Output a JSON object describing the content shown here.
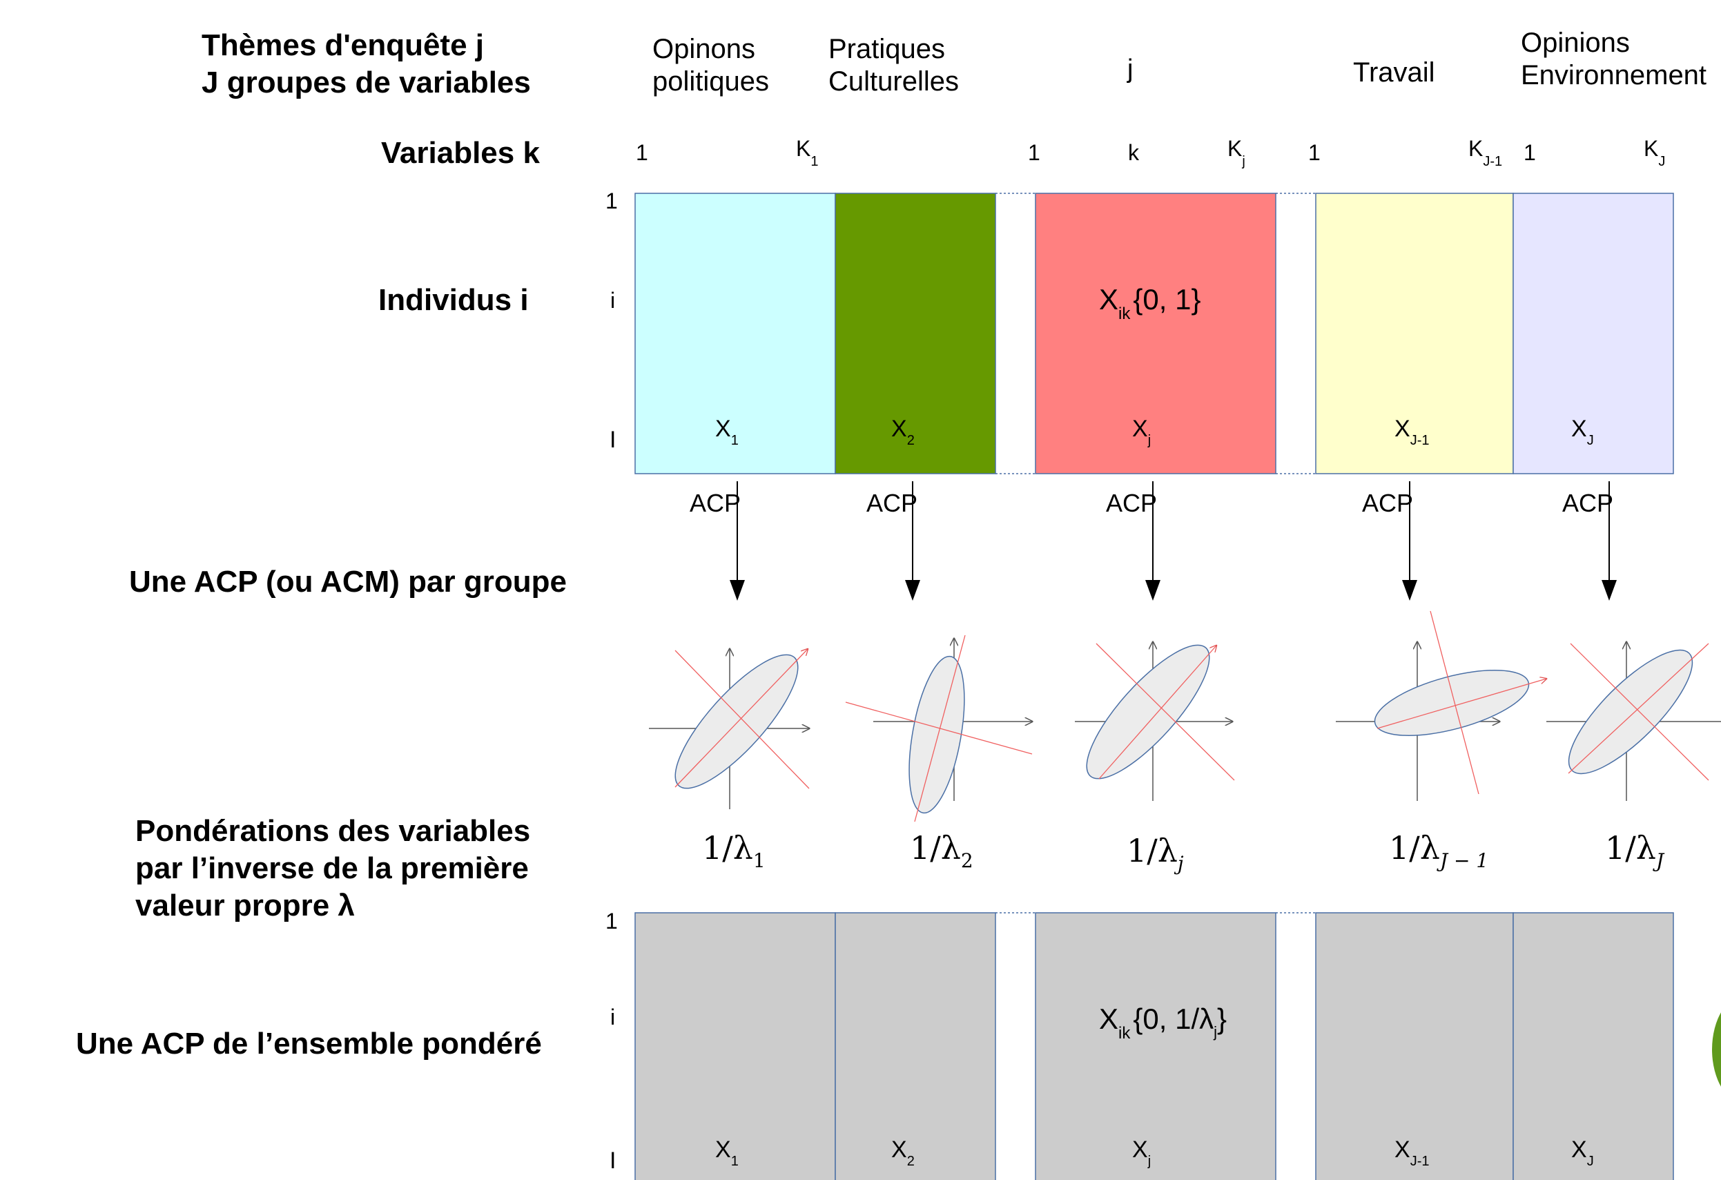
{
  "labels": {
    "themes_line1": "Thèmes d'enquête j",
    "themes_line2": "J groupes de variables",
    "variables": "Variables k",
    "individus": "Individus i",
    "acp_par_groupe": "Une ACP (ou ACM) par groupe",
    "ponderation_line1": "Pondérations des variables",
    "ponderation_line2": "par l’inverse de la première",
    "ponderation_line3": "valeur propre λ",
    "acp_ensemble": "Une ACP de l’ensemble pondéré"
  },
  "themes": [
    {
      "line1": "Opinons",
      "line2": "politiques"
    },
    {
      "line1": "Pratiques",
      "line2": "Culturelles"
    },
    {
      "line1": "j",
      "line2": ""
    },
    {
      "line1": "Travail",
      "line2": ""
    },
    {
      "line1": "Opinions",
      "line2": "Environnement"
    }
  ],
  "row_labels": {
    "first": "1",
    "middle": "i",
    "last": "I"
  },
  "var_ticks": {
    "one": "1",
    "K": "K",
    "k": "k",
    "sub1": "1",
    "subj": "j",
    "subJm1": "J-1",
    "subJ": "J"
  },
  "cells": {
    "top_value": "{0, 1}",
    "bottom_value_prefix": "{0, 1/λ",
    "bottom_value_suffix": "}",
    "X": "X",
    "ik": "ik"
  },
  "blocks": [
    {
      "sub": "1",
      "color": "#ccffff"
    },
    {
      "sub": "2",
      "color": "#669900"
    },
    {
      "sub": "j",
      "color": "#ff8080"
    },
    {
      "sub": "J-1",
      "color": "#ffffcc"
    },
    {
      "sub": "J",
      "color": "#e6e6ff"
    }
  ],
  "bottom_block_color": "#cccccc",
  "acp_label": "ACP",
  "weights": [
    {
      "base": "1/λ",
      "sub": "1"
    },
    {
      "base": "1/λ",
      "sub": "2"
    },
    {
      "base": "1/λ",
      "sub": "j"
    },
    {
      "base": "1/λ",
      "sub": "J − 1"
    },
    {
      "base": "1/λ",
      "sub": "J"
    }
  ]
}
